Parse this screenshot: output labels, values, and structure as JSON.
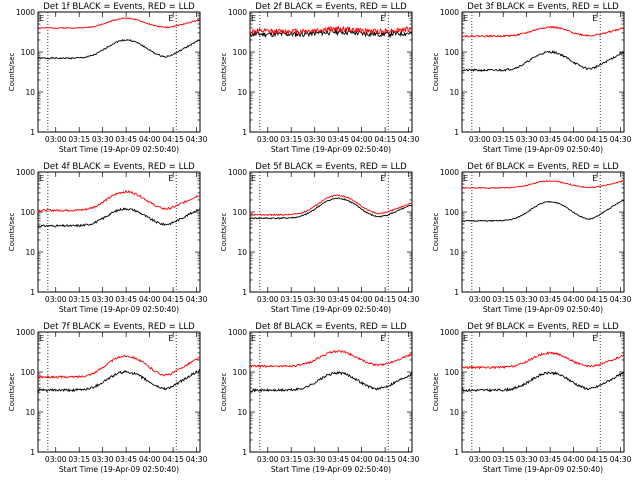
{
  "figure": {
    "width": 640,
    "height": 480,
    "background": "#ffffff",
    "colors": {
      "events": "#000000",
      "lld": "#ff0000",
      "axes": "#000000"
    },
    "ylabel": "Counts/sec",
    "xlabel": "Start Time (19-Apr-09 02:50:40)",
    "marker_letter_left": "E",
    "marker_letter_right": "E"
  },
  "chart_data": [
    {
      "type": "line",
      "title": "Det 1f BLACK = Events, RED = LLD",
      "xlabel": "Start Time (19-Apr-09 02:50:40)",
      "ylabel": "Counts/sec",
      "yscale": "log",
      "ylim": [
        1,
        1000
      ],
      "yticks": [
        "1",
        "10",
        "100",
        "1000"
      ],
      "xticks": [
        "03:00",
        "03:15",
        "03:30",
        "03:45",
        "04:00",
        "04:15",
        "04:30"
      ],
      "xlim_minutes_after_start": [
        -2.0,
        101.5
      ],
      "event_lines_minutes_after_start": [
        4.3,
        86.3
      ],
      "series": [
        {
          "name": "BLACK = Events",
          "color": "#000000",
          "baseline": 70,
          "peak": 200,
          "peak_at": "03:45",
          "end": 200,
          "noise": 0.04
        },
        {
          "name": "RED = LLD",
          "color": "#ff0000",
          "baseline": 400,
          "peak": 700,
          "peak_at": "03:45",
          "end": 650,
          "noise": 0.03
        }
      ]
    },
    {
      "type": "line",
      "title": "Det 2f BLACK = Events, RED = LLD",
      "xlabel": "Start Time (19-Apr-09 02:50:40)",
      "ylabel": "Counts/sec",
      "yscale": "log",
      "ylim": [
        1,
        1000
      ],
      "yticks": [
        "1",
        "10",
        "100",
        "1000"
      ],
      "xticks": [
        "03:00",
        "03:15",
        "03:30",
        "03:45",
        "04:00",
        "04:15",
        "04:30"
      ],
      "xlim_minutes_after_start": [
        -2.0,
        101.5
      ],
      "event_lines_minutes_after_start": [
        4.3,
        86.3
      ],
      "series": [
        {
          "name": "BLACK = Events",
          "color": "#000000",
          "baseline": 280,
          "peak": 320,
          "peak_at": "03:45",
          "end": 300,
          "noise": 0.15
        },
        {
          "name": "RED = LLD",
          "color": "#ff0000",
          "baseline": 330,
          "peak": 380,
          "peak_at": "03:45",
          "end": 380,
          "noise": 0.15
        }
      ]
    },
    {
      "type": "line",
      "title": "Det 3f BLACK = Events, RED = LLD",
      "xlabel": "Start Time (19-Apr-09 02:50:40)",
      "ylabel": "Counts/sec",
      "yscale": "log",
      "ylim": [
        1,
        1000
      ],
      "yticks": [
        "1",
        "10",
        "100",
        "1000"
      ],
      "xticks": [
        "03:00",
        "03:15",
        "03:30",
        "03:45",
        "04:00",
        "04:15",
        "04:30"
      ],
      "xlim_minutes_after_start": [
        -2.0,
        101.5
      ],
      "event_lines_minutes_after_start": [
        4.3,
        86.3
      ],
      "series": [
        {
          "name": "BLACK = Events",
          "color": "#000000",
          "baseline": 35,
          "peak": 100,
          "peak_at": "03:45",
          "end": 100,
          "noise": 0.06
        },
        {
          "name": "RED = LLD",
          "color": "#ff0000",
          "baseline": 250,
          "peak": 420,
          "peak_at": "03:45",
          "end": 400,
          "noise": 0.05
        }
      ]
    },
    {
      "type": "line",
      "title": "Det 4f BLACK = Events, RED = LLD",
      "xlabel": "Start Time (19-Apr-09 02:50:40)",
      "ylabel": "Counts/sec",
      "yscale": "log",
      "ylim": [
        1,
        1000
      ],
      "yticks": [
        "1",
        "10",
        "100",
        "1000"
      ],
      "xticks": [
        "03:00",
        "03:15",
        "03:30",
        "03:45",
        "04:00",
        "04:15",
        "04:30"
      ],
      "xlim_minutes_after_start": [
        -2.0,
        101.5
      ],
      "event_lines_minutes_after_start": [
        4.3,
        86.3
      ],
      "series": [
        {
          "name": "BLACK = Events",
          "color": "#000000",
          "baseline": 45,
          "peak": 120,
          "peak_at": "03:45",
          "end": 120,
          "noise": 0.06
        },
        {
          "name": "RED = LLD",
          "color": "#ff0000",
          "baseline": 110,
          "peak": 320,
          "peak_at": "03:45",
          "end": 270,
          "noise": 0.06
        }
      ]
    },
    {
      "type": "line",
      "title": "Det 5f BLACK = Events, RED = LLD",
      "xlabel": "Start Time (19-Apr-09 02:50:40)",
      "ylabel": "Counts/sec",
      "yscale": "log",
      "ylim": [
        1,
        1000
      ],
      "yticks": [
        "1",
        "10",
        "100",
        "1000"
      ],
      "xticks": [
        "03:00",
        "03:15",
        "03:30",
        "03:45",
        "04:00",
        "04:15",
        "04:30"
      ],
      "xlim_minutes_after_start": [
        -2.0,
        101.5
      ],
      "event_lines_minutes_after_start": [
        4.3,
        86.3
      ],
      "series": [
        {
          "name": "BLACK = Events",
          "color": "#000000",
          "baseline": 70,
          "peak": 220,
          "peak_at": "03:45",
          "end": 150,
          "noise": 0.04
        },
        {
          "name": "RED = LLD",
          "color": "#ff0000",
          "baseline": 85,
          "peak": 260,
          "peak_at": "03:45",
          "end": 170,
          "noise": 0.04
        }
      ]
    },
    {
      "type": "line",
      "title": "Det 6f BLACK = Events, RED = LLD",
      "xlabel": "Start Time (19-Apr-09 02:50:40)",
      "ylabel": "Counts/sec",
      "yscale": "log",
      "ylim": [
        1,
        1000
      ],
      "yticks": [
        "1",
        "10",
        "100",
        "1000"
      ],
      "xticks": [
        "03:00",
        "03:15",
        "03:30",
        "03:45",
        "04:00",
        "04:15",
        "04:30"
      ],
      "xlim_minutes_after_start": [
        -2.0,
        101.5
      ],
      "event_lines_minutes_after_start": [
        4.3,
        86.3
      ],
      "series": [
        {
          "name": "BLACK = Events",
          "color": "#000000",
          "baseline": 60,
          "peak": 180,
          "peak_at": "03:45",
          "end": 200,
          "noise": 0.03
        },
        {
          "name": "RED = LLD",
          "color": "#ff0000",
          "baseline": 400,
          "peak": 600,
          "peak_at": "03:45",
          "end": 600,
          "noise": 0.03
        }
      ]
    },
    {
      "type": "line",
      "title": "Det 7f BLACK = Events, RED = LLD",
      "xlabel": "Start Time (19-Apr-09 02:50:40)",
      "ylabel": "Counts/sec",
      "yscale": "log",
      "ylim": [
        1,
        1000
      ],
      "yticks": [
        "1",
        "10",
        "100",
        "1000"
      ],
      "xticks": [
        "03:00",
        "03:15",
        "03:30",
        "03:45",
        "04:00",
        "04:15",
        "04:30"
      ],
      "xlim_minutes_after_start": [
        -2.0,
        101.5
      ],
      "event_lines_minutes_after_start": [
        4.3,
        86.3
      ],
      "series": [
        {
          "name": "BLACK = Events",
          "color": "#000000",
          "baseline": 35,
          "peak": 100,
          "peak_at": "03:45",
          "end": 110,
          "noise": 0.07
        },
        {
          "name": "RED = LLD",
          "color": "#ff0000",
          "baseline": 75,
          "peak": 250,
          "peak_at": "03:45",
          "end": 230,
          "noise": 0.06
        }
      ]
    },
    {
      "type": "line",
      "title": "Det 8f BLACK = Events, RED = LLD",
      "xlabel": "Start Time (19-Apr-09 02:50:40)",
      "ylabel": "Counts/sec",
      "yscale": "log",
      "ylim": [
        1,
        1000
      ],
      "yticks": [
        "1",
        "10",
        "100",
        "1000"
      ],
      "xticks": [
        "03:00",
        "03:15",
        "03:30",
        "03:45",
        "04:00",
        "04:15",
        "04:30"
      ],
      "xlim_minutes_after_start": [
        -2.0,
        101.5
      ],
      "event_lines_minutes_after_start": [
        4.3,
        86.3
      ],
      "series": [
        {
          "name": "BLACK = Events",
          "color": "#000000",
          "baseline": 35,
          "peak": 95,
          "peak_at": "03:45",
          "end": 90,
          "noise": 0.07
        },
        {
          "name": "RED = LLD",
          "color": "#ff0000",
          "baseline": 140,
          "peak": 330,
          "peak_at": "03:45",
          "end": 280,
          "noise": 0.06
        }
      ]
    },
    {
      "type": "line",
      "title": "Det 9f BLACK = Events, RED = LLD",
      "xlabel": "Start Time (19-Apr-09 02:50:40)",
      "ylabel": "Counts/sec",
      "yscale": "log",
      "ylim": [
        1,
        1000
      ],
      "yticks": [
        "1",
        "10",
        "100",
        "1000"
      ],
      "xticks": [
        "03:00",
        "03:15",
        "03:30",
        "03:45",
        "04:00",
        "04:15",
        "04:30"
      ],
      "xlim_minutes_after_start": [
        -2.0,
        101.5
      ],
      "event_lines_minutes_after_start": [
        4.3,
        86.3
      ],
      "series": [
        {
          "name": "BLACK = Events",
          "color": "#000000",
          "baseline": 35,
          "peak": 95,
          "peak_at": "03:45",
          "end": 95,
          "noise": 0.07
        },
        {
          "name": "RED = LLD",
          "color": "#ff0000",
          "baseline": 130,
          "peak": 300,
          "peak_at": "03:45",
          "end": 260,
          "noise": 0.06
        }
      ]
    }
  ]
}
